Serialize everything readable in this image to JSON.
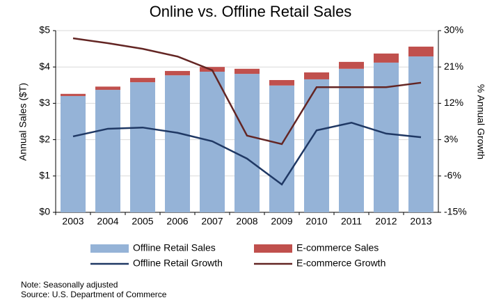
{
  "chart_data": {
    "type": "bar",
    "title": "Online vs. Offline Retail Sales",
    "ylabel": "Annual Sales ($T)",
    "y2label": "% Annual Growth",
    "categories": [
      "2003",
      "2004",
      "2005",
      "2006",
      "2007",
      "2008",
      "2009",
      "2010",
      "2011",
      "2012",
      "2013"
    ],
    "series": [
      {
        "name": "Offline Retail Sales",
        "type": "bar",
        "color": "#95b3d7",
        "values": [
          3.2,
          3.37,
          3.58,
          3.77,
          3.87,
          3.81,
          3.49,
          3.66,
          3.95,
          4.12,
          4.29
        ]
      },
      {
        "name": "E-commerce Sales",
        "type": "bar",
        "color": "#c0504d",
        "values": [
          0.06,
          0.09,
          0.12,
          0.12,
          0.13,
          0.14,
          0.15,
          0.19,
          0.19,
          0.25,
          0.27
        ]
      },
      {
        "name": "Offline Retail Growth",
        "type": "line",
        "axis": "y2",
        "color": "#1f3864",
        "values": [
          3.8,
          5.7,
          6.0,
          4.7,
          2.6,
          -1.7,
          -8.1,
          5.3,
          7.2,
          4.5,
          3.6
        ]
      },
      {
        "name": "E-commerce Growth",
        "type": "line",
        "axis": "y2",
        "color": "#632523",
        "values": [
          28.1,
          26.9,
          25.5,
          23.6,
          20.2,
          4.0,
          1.9,
          16.0,
          16.0,
          16.0,
          17.1
        ]
      }
    ],
    "ylim": [
      0,
      5
    ],
    "yticks": [
      {
        "value": 0,
        "label": "$0"
      },
      {
        "value": 1,
        "label": "$1"
      },
      {
        "value": 2,
        "label": "$2"
      },
      {
        "value": 3,
        "label": "$3"
      },
      {
        "value": 4,
        "label": "$4"
      },
      {
        "value": 5,
        "label": "$5"
      }
    ],
    "y2lim": [
      -15,
      30
    ],
    "y2ticks": [
      {
        "value": -15,
        "label": "-15%"
      },
      {
        "value": -6,
        "label": "-6%"
      },
      {
        "value": 3,
        "label": "3%"
      },
      {
        "value": 12,
        "label": "12%"
      },
      {
        "value": 21,
        "label": "21%"
      },
      {
        "value": 30,
        "label": "30%"
      }
    ],
    "grid": true,
    "notes": [
      "Note: Seasonally adjusted",
      "Source: U.S. Department of Commerce"
    ]
  }
}
